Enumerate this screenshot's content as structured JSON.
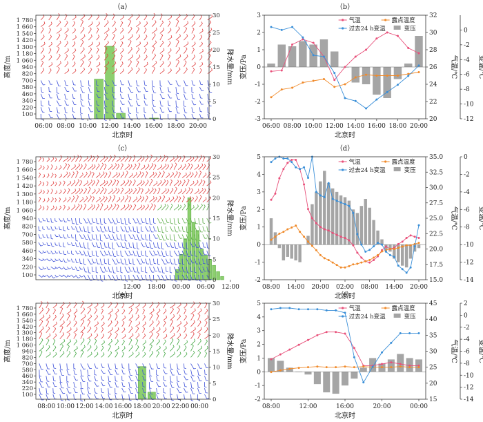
{
  "chart_data": [
    {
      "panel": "（a）",
      "type": "bar",
      "title": "（a）",
      "xlabel": "北京时",
      "ylabel": "高度/m",
      "y2label": "降水量/mm",
      "height_ticks": [
        "100",
        "220",
        "340",
        "460",
        "580",
        "700",
        "820",
        "940",
        "1 060",
        "1 180",
        "1 300",
        "1 420",
        "1 540",
        "1 660",
        "1 780"
      ],
      "xticks": [
        "06:00",
        "08:00",
        "10:00",
        "12:00",
        "14:00",
        "16:00",
        "18:00",
        "20:00"
      ],
      "y2lim": [
        0,
        30
      ],
      "y2ticks": [
        0,
        5,
        10,
        15,
        20,
        25,
        30
      ],
      "bars_x": [
        "11:00",
        "12:00",
        "13:00",
        "16:00"
      ],
      "precip_mm": [
        11.5,
        21.0,
        1.6,
        0.2
      ],
      "barb_colors": {
        "upper": "#e04040",
        "lower": "#3c4fd8"
      }
    },
    {
      "panel": "（b）",
      "type": "line",
      "title": "（b）",
      "xlabel": "北京时",
      "ylabel": "变压/Pa",
      "y2label": "气温/℃",
      "y3label": "变温/℃",
      "ylim": [
        -3,
        3
      ],
      "y2lim": [
        20,
        32
      ],
      "y3lim": [
        -12,
        2
      ],
      "yticks": [
        -3,
        -2,
        -1,
        0,
        1,
        2,
        3
      ],
      "y2ticks": [
        20,
        22,
        24,
        26,
        28,
        30,
        32
      ],
      "y3ticks": [
        -12,
        -10,
        -8,
        -6,
        -4,
        -2,
        0
      ],
      "x": [
        "06:00",
        "07:00",
        "08:00",
        "09:00",
        "10:00",
        "11:00",
        "12:00",
        "13:00",
        "14:00",
        "15:00",
        "16:00",
        "17:00",
        "18:00",
        "19:00",
        "20:00"
      ],
      "xticks": [
        "06:00",
        "08:00",
        "10:00",
        "12:00",
        "14:00",
        "16:00",
        "18:00",
        "20:00"
      ],
      "legend": [
        "气温",
        "露点温度",
        "过去24 h变温",
        "变压"
      ],
      "series": [
        {
          "name": "气温",
          "color": "#e8507a",
          "axis": "y2",
          "values": [
            25.5,
            25.6,
            28.6,
            29.2,
            28.8,
            27.2,
            24.5,
            26.0,
            27.2,
            28.0,
            29.3,
            30.0,
            29.6,
            28.2,
            27.6
          ]
        },
        {
          "name": "露点温度",
          "color": "#f08a2a",
          "axis": "y2",
          "values": [
            22.5,
            23.4,
            23.6,
            24.2,
            24.4,
            24.6,
            23.7,
            24.0,
            24.8,
            25.1,
            25.0,
            25.0,
            25.0,
            25.2,
            25.4
          ]
        },
        {
          "name": "过去24 h变温",
          "color": "#3a8fd8",
          "axis": "y3",
          "values": [
            0.4,
            0.0,
            0.4,
            -1.0,
            -3.4,
            -3.6,
            -5.8,
            -9.2,
            -9.6,
            -10.6,
            -9.4,
            -8.4,
            -7.4,
            -6.2,
            -4.8
          ]
        }
      ],
      "bar_series": {
        "name": "变压",
        "color": "#a5a5a5",
        "values": [
          0.2,
          1.3,
          1.2,
          1.5,
          1.3,
          1.6,
          0.9,
          0.0,
          -0.9,
          -1.0,
          -1.6,
          -1.8,
          -0.7,
          0.2,
          1.8
        ]
      }
    },
    {
      "panel": "（c）",
      "type": "bar",
      "title": "（c）",
      "xlabel": "北京时",
      "ylabel": "高度/m",
      "y2label": "降水量/mm",
      "height_ticks": [
        "100",
        "220",
        "340",
        "460",
        "580",
        "700",
        "820",
        "940",
        "1 060",
        "1 180",
        "1 300",
        "1 420",
        "1 540",
        "1 660",
        "1 780"
      ],
      "xticks": [
        "12:00",
        "18:00",
        "00:00",
        "06:00",
        "12:00"
      ],
      "y2lim": [
        0,
        30
      ],
      "y2ticks": [
        0,
        5,
        10,
        15,
        20,
        25,
        30
      ],
      "bars_x_hours": [
        -1,
        0,
        1,
        2,
        3,
        4,
        5,
        6,
        7,
        8,
        9,
        10
      ],
      "precip_mm": [
        2.5,
        6.2,
        10.0,
        20.0,
        14.0,
        12.0,
        7.5,
        6.0,
        5.0,
        3.5,
        2.0,
        0.8
      ],
      "barb_colors": {
        "upper": "#e04040",
        "lower": "#3c4fd8"
      }
    },
    {
      "panel": "（d）",
      "type": "line",
      "title": "（d）",
      "xlabel": "北京时",
      "ylabel": "变压/Pa",
      "y2label": "气温/℃",
      "y3label": "变温/℃",
      "ylim": [
        -2,
        5
      ],
      "y2lim": [
        15,
        35
      ],
      "y3lim": [
        -14,
        0
      ],
      "yticks": [
        -2,
        -1,
        0,
        1,
        2,
        3,
        4,
        5
      ],
      "y2ticks": [
        15.0,
        17.5,
        20.0,
        22.5,
        25.0,
        27.5,
        30.0,
        32.5,
        35.0
      ],
      "y3ticks": [
        -14,
        -12,
        -10,
        -8,
        -6,
        -4,
        -2,
        0
      ],
      "x": [
        "08:00",
        "09:00",
        "10:00",
        "11:00",
        "12:00",
        "13:00",
        "14:00",
        "15:00",
        "16:00",
        "17:00",
        "18:00",
        "19:00",
        "20:00",
        "21:00",
        "22:00",
        "23:00",
        "00:00",
        "01:00",
        "02:00",
        "03:00",
        "04:00",
        "05:00",
        "06:00",
        "07:00",
        "08:00",
        "09:00",
        "10:00",
        "11:00",
        "12:00",
        "13:00",
        "14:00",
        "15:00",
        "16:00",
        "17:00",
        "18:00",
        "19:00",
        "20:00"
      ],
      "xticks": [
        "08:00",
        "14:00",
        "20:00",
        "02:00",
        "08:00",
        "14:00",
        "20:00"
      ],
      "legend": [
        "气温",
        "露点温度",
        "过去24 h变温",
        "变压"
      ],
      "series": [
        {
          "name": "气温",
          "color": "#e8507a",
          "axis": "y2",
          "values": [
            28.0,
            29.0,
            31.5,
            33.0,
            34.0,
            34.5,
            34.5,
            33.0,
            30.5,
            26.5,
            25.0,
            24.2,
            23.6,
            23.2,
            23.0,
            22.6,
            22.3,
            22.0,
            21.8,
            21.4,
            20.6,
            19.4,
            18.6,
            18.0,
            17.8,
            18.2,
            18.8,
            19.8,
            20.4,
            20.0,
            20.2,
            20.8,
            21.2,
            21.8,
            22.2,
            22.0,
            21.8
          ]
        },
        {
          "name": "露点温度",
          "color": "#f08a2a",
          "axis": "y2",
          "values": [
            21.5,
            22.0,
            22.5,
            22.8,
            23.2,
            23.5,
            23.8,
            22.8,
            22.0,
            21.2,
            20.5,
            19.8,
            19.0,
            18.5,
            18.2,
            17.8,
            17.4,
            17.0,
            17.0,
            17.2,
            17.5,
            17.6,
            17.8,
            18.0,
            18.2,
            18.6,
            19.0,
            19.6,
            19.8,
            20.0,
            20.0,
            20.2,
            20.4,
            20.6,
            20.6,
            20.8,
            21.0
          ]
        },
        {
          "name": "过去24 h变温",
          "color": "#3a8fd8",
          "axis": "y3",
          "values": [
            -0.6,
            -0.2,
            0.0,
            -0.2,
            -0.2,
            -0.6,
            -1.2,
            -1.4,
            -1.2,
            -2.4,
            0.0,
            -4.0,
            -4.4,
            -4.6,
            -3.0,
            -4.8,
            -5.0,
            -5.2,
            -5.4,
            -5.6,
            -6.4,
            -8.8,
            -10.0,
            -10.8,
            -10.6,
            -10.2,
            -9.8,
            -10.0,
            -10.8,
            -11.2,
            -11.4,
            -12.4,
            -12.8,
            -13.2,
            -12.6,
            -10.2,
            -7.8
          ]
        }
      ],
      "bar_series": {
        "name": "变压",
        "color": "#a5a5a5",
        "values": [
          1.5,
          0.7,
          -0.2,
          -0.9,
          -0.7,
          -0.8,
          -0.9,
          -1.0,
          0.0,
          0.5,
          2.3,
          3.0,
          3.6,
          4.2,
          3.5,
          3.2,
          3.0,
          2.8,
          2.7,
          2.5,
          2.0,
          1.8,
          2.2,
          2.6,
          2.1,
          1.4,
          0.8,
          0.3,
          -0.3,
          -0.4,
          -0.8,
          -1.0,
          -1.2,
          -1.3,
          -0.8,
          -0.4,
          -0.2
        ]
      }
    },
    {
      "panel": "（e）",
      "type": "bar",
      "title": "（e）",
      "xlabel": "北京时",
      "ylabel": "高度/m",
      "y2label": "降水量/mm",
      "height_ticks": [
        "100",
        "220",
        "340",
        "460",
        "580",
        "700",
        "820",
        "940",
        "1 060",
        "1 180",
        "1 300",
        "1 420",
        "1 540",
        "1 660",
        "1 780"
      ],
      "xticks": [
        "08:00",
        "10:00",
        "12:00",
        "14:00",
        "16:00",
        "18:00",
        "20:00",
        "22:00",
        "00:00"
      ],
      "y2lim": [
        0,
        30
      ],
      "y2ticks": [
        0,
        5,
        10,
        15,
        20,
        25,
        30
      ],
      "bars_x": [
        "18:00",
        "19:00"
      ],
      "precip_mm": [
        10.2,
        2.2
      ],
      "barb_colors": {
        "upper": "#e04040",
        "lower": "#3c4fd8"
      }
    },
    {
      "panel": "（f）",
      "type": "line",
      "title": "（f）",
      "xlabel": "北京时",
      "ylabel": "变压/Pa",
      "y2label": "气温/℃",
      "y3label": "变温/℃",
      "ylim": [
        -2,
        5
      ],
      "y2lim": [
        15,
        45
      ],
      "y3lim": [
        -14,
        2
      ],
      "yticks": [
        -2,
        -1,
        0,
        1,
        2,
        3,
        4,
        5
      ],
      "y2ticks": [
        15,
        20,
        25,
        30,
        35,
        40,
        45
      ],
      "y3ticks": [
        -14,
        -12,
        -10,
        -8,
        -6,
        -4,
        -2,
        0,
        2
      ],
      "x": [
        "08:00",
        "09:00",
        "10:00",
        "11:00",
        "12:00",
        "13:00",
        "14:00",
        "15:00",
        "16:00",
        "17:00",
        "18:00",
        "19:00",
        "20:00",
        "21:00",
        "22:00",
        "23:00",
        "00:00"
      ],
      "xticks": [
        "08:00",
        "12:00",
        "16:00",
        "20:00",
        "00:00"
      ],
      "legend": [
        "气温",
        "露点温度",
        "过去24 h变温",
        "变压"
      ],
      "series": [
        {
          "name": "气温",
          "color": "#e8507a",
          "axis": "y2",
          "values": [
            27.5,
            29.0,
            30.5,
            32.0,
            33.5,
            35.0,
            36.0,
            36.0,
            35.5,
            31.0,
            25.5,
            25.5,
            26.0,
            26.5,
            26.0,
            25.5,
            25.5
          ]
        },
        {
          "name": "露点温度",
          "color": "#f08a2a",
          "axis": "y2",
          "values": [
            23.5,
            24.0,
            24.5,
            24.8,
            25.0,
            25.2,
            25.0,
            25.0,
            25.2,
            25.0,
            25.2,
            25.0,
            25.0,
            25.0,
            25.2,
            25.0,
            25.0
          ]
        },
        {
          "name": "过去24 h变温",
          "color": "#3a8fd8",
          "axis": "y3",
          "values": [
            1.0,
            1.2,
            1.2,
            1.0,
            1.0,
            1.0,
            0.8,
            0.8,
            0.4,
            -7.0,
            -11.2,
            -8.6,
            -6.2,
            -4.6,
            -3.0,
            -3.0,
            -3.0
          ]
        }
      ],
      "bar_series": {
        "name": "变压",
        "color": "#a5a5a5",
        "values": [
          1.0,
          0.8,
          0.3,
          0.0,
          -0.2,
          -0.9,
          -1.5,
          -1.6,
          -1.0,
          -0.5,
          0.3,
          1.0,
          0.6,
          0.9,
          1.3,
          1.0,
          0.9
        ]
      }
    }
  ]
}
